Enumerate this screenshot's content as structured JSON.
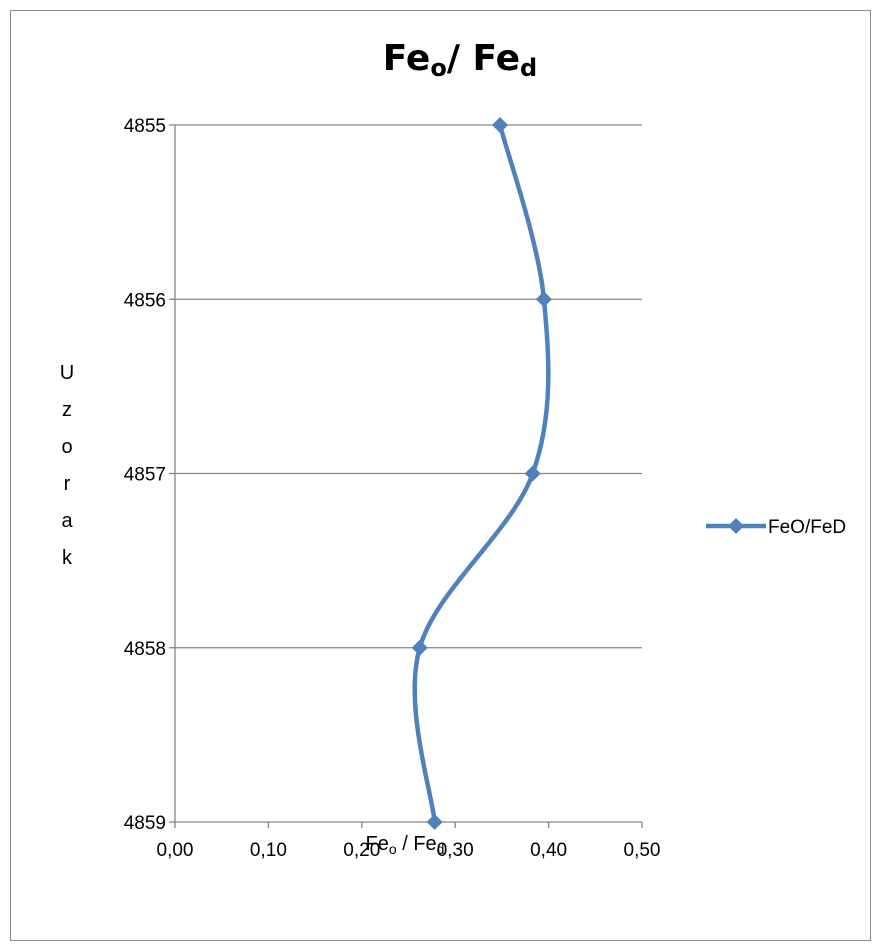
{
  "chart_data": {
    "type": "line",
    "title": {
      "base": "Fe",
      "sub1": "o",
      "mid": "/ Fe",
      "sub2": "d"
    },
    "xlabel": {
      "base": "Fe",
      "sub1": "o",
      "mid": " / Fe",
      "sub2": "d"
    },
    "ylabel_letters": [
      "U",
      "z",
      "o",
      "r",
      "a",
      "k"
    ],
    "xlim": [
      0,
      0.5
    ],
    "ylim": [
      4855,
      4859
    ],
    "y_reversed": true,
    "x_ticks": [
      "0,00",
      "0,10",
      "0,20",
      "0,30",
      "0,40",
      "0,50"
    ],
    "y_ticks": [
      "4855",
      "4856",
      "4857",
      "4858",
      "4859"
    ],
    "grid": "horizontal",
    "legend_position": "right",
    "series": [
      {
        "name": "FeO/FeD",
        "color": "#4f81bd",
        "marker": "diamond",
        "smooth": true,
        "points": [
          {
            "x": 0.348,
            "y": 4855
          },
          {
            "x": 0.395,
            "y": 4856
          },
          {
            "x": 0.383,
            "y": 4857
          },
          {
            "x": 0.262,
            "y": 4858
          },
          {
            "x": 0.278,
            "y": 4859
          }
        ]
      }
    ]
  }
}
